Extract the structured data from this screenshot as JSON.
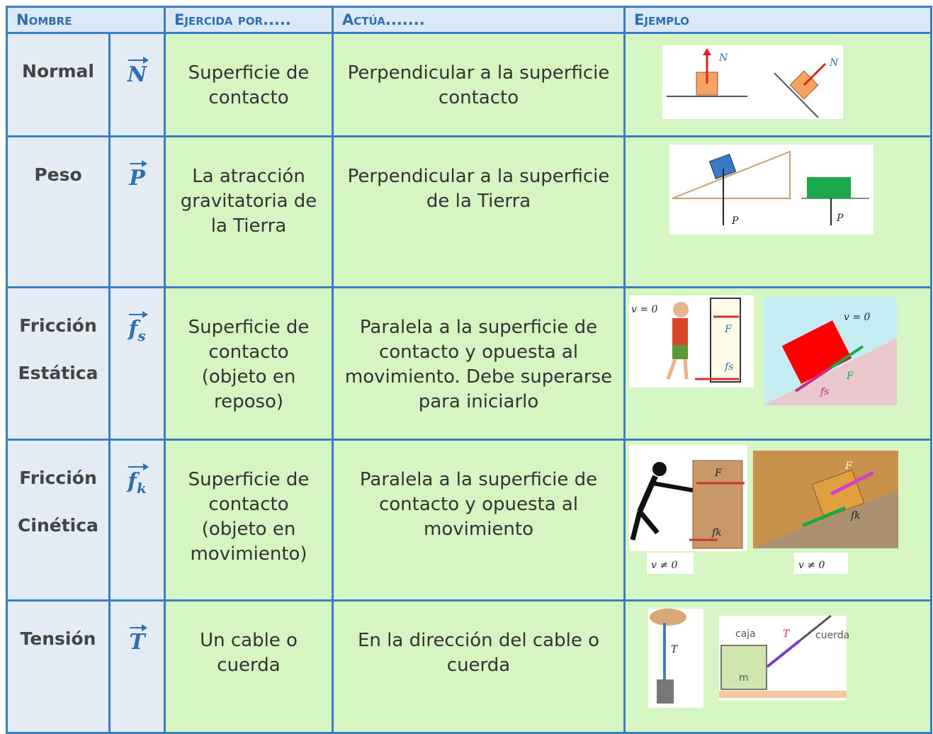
{
  "table": {
    "header": [
      "Nombre",
      "Ejercida por.....",
      "Actúa.......",
      "Ejemplo"
    ],
    "rows": [
      {
        "name": [
          "Normal"
        ],
        "symbol": {
          "letter": "N"
        },
        "exerted_by": "Superficie de contacto",
        "acts": "Perpendicular a la superficie contacto",
        "example_labels": [
          "N",
          "N"
        ]
      },
      {
        "name": [
          "Peso"
        ],
        "symbol": {
          "letter": "P"
        },
        "exerted_by": "La atracción gravitatoria de la Tierra",
        "acts": "Perpendicular a la superficie de la Tierra",
        "example_labels": [
          "P",
          "P"
        ]
      },
      {
        "name": [
          "Fricción",
          "Estática"
        ],
        "symbol": {
          "letter": "f",
          "subscript": "s"
        },
        "exerted_by": "Superficie de contacto (objeto en reposo)",
        "acts": "Paralela a la superficie de contacto y opuesta al movimiento. Debe superarse para iniciarlo",
        "example_labels": [
          "v = 0",
          "F",
          "fs",
          "v = 0",
          "fs",
          "F"
        ]
      },
      {
        "name": [
          "Fricción",
          "Cinética"
        ],
        "symbol": {
          "letter": "f",
          "subscript": "k"
        },
        "exerted_by": "Superficie de contacto (objeto en movimiento)",
        "acts": "Paralela a la superficie de contacto y opuesta al movimiento",
        "example_labels": [
          "F",
          "fk",
          "v ≠ 0",
          "F",
          "fk",
          "v ≠ 0"
        ]
      },
      {
        "name": [
          "Tensión"
        ],
        "symbol": {
          "letter": "T"
        },
        "exerted_by": "Un cable o cuerda",
        "acts": "En la dirección del cable o cuerda",
        "example_labels": [
          "T",
          "caja",
          "T",
          "cuerda",
          "m"
        ]
      }
    ]
  }
}
